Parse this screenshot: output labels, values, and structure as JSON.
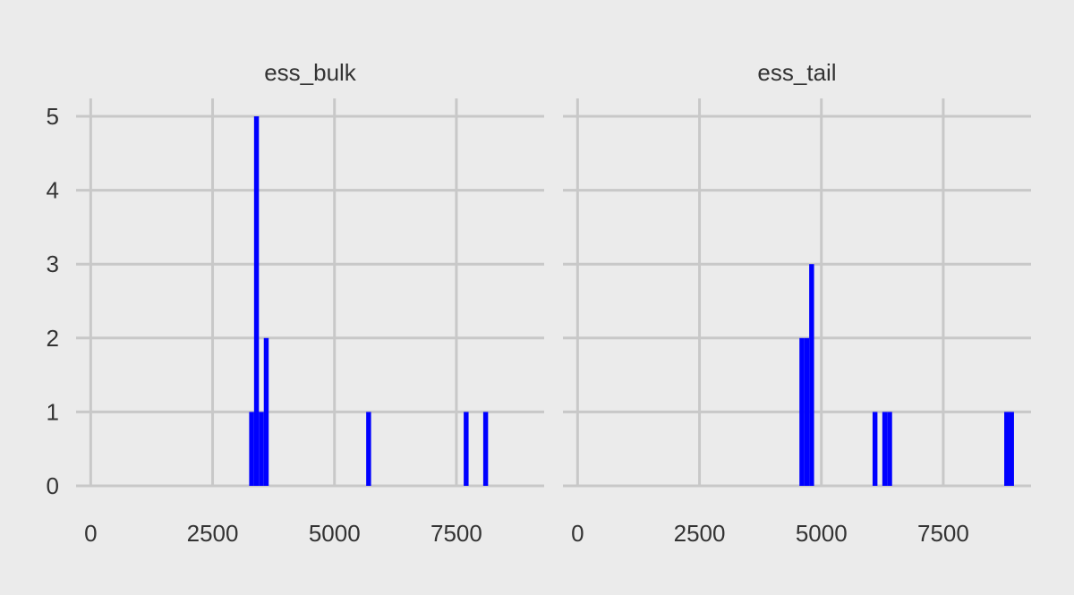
{
  "colors": {
    "background": "#ebebeb",
    "grid": "#c8c8c8",
    "bar": "#0000ff",
    "text": "#333333"
  },
  "chart_data": {
    "type": "bar",
    "facets": [
      "ess_bulk",
      "ess_tail"
    ],
    "grid": true,
    "xlim": [
      -300,
      9300
    ],
    "ylim": [
      0,
      5.2
    ],
    "x_ticks": [
      0,
      2500,
      5000,
      7500
    ],
    "x_tick_labels": [
      "0",
      "2500",
      "5000",
      "7500"
    ],
    "y_ticks": [
      0,
      1,
      2,
      3,
      4,
      5
    ],
    "y_tick_labels": [
      "0",
      "1",
      "2",
      "3",
      "4",
      "5"
    ],
    "series": [
      {
        "name": "ess_bulk",
        "bins": [
          {
            "x0": 3250,
            "x1": 3350,
            "count": 1
          },
          {
            "x0": 3350,
            "x1": 3450,
            "count": 5
          },
          {
            "x0": 3450,
            "x1": 3550,
            "count": 1
          },
          {
            "x0": 3550,
            "x1": 3650,
            "count": 2
          },
          {
            "x0": 5650,
            "x1": 5750,
            "count": 1
          },
          {
            "x0": 7650,
            "x1": 7750,
            "count": 1
          },
          {
            "x0": 8050,
            "x1": 8150,
            "count": 1
          }
        ]
      },
      {
        "name": "ess_tail",
        "bins": [
          {
            "x0": 4550,
            "x1": 4650,
            "count": 2
          },
          {
            "x0": 4650,
            "x1": 4750,
            "count": 2
          },
          {
            "x0": 4750,
            "x1": 4850,
            "count": 3
          },
          {
            "x0": 6050,
            "x1": 6150,
            "count": 1
          },
          {
            "x0": 6250,
            "x1": 6350,
            "count": 1
          },
          {
            "x0": 6350,
            "x1": 6450,
            "count": 1
          },
          {
            "x0": 8750,
            "x1": 8850,
            "count": 1
          },
          {
            "x0": 8850,
            "x1": 8950,
            "count": 1
          }
        ]
      }
    ]
  }
}
